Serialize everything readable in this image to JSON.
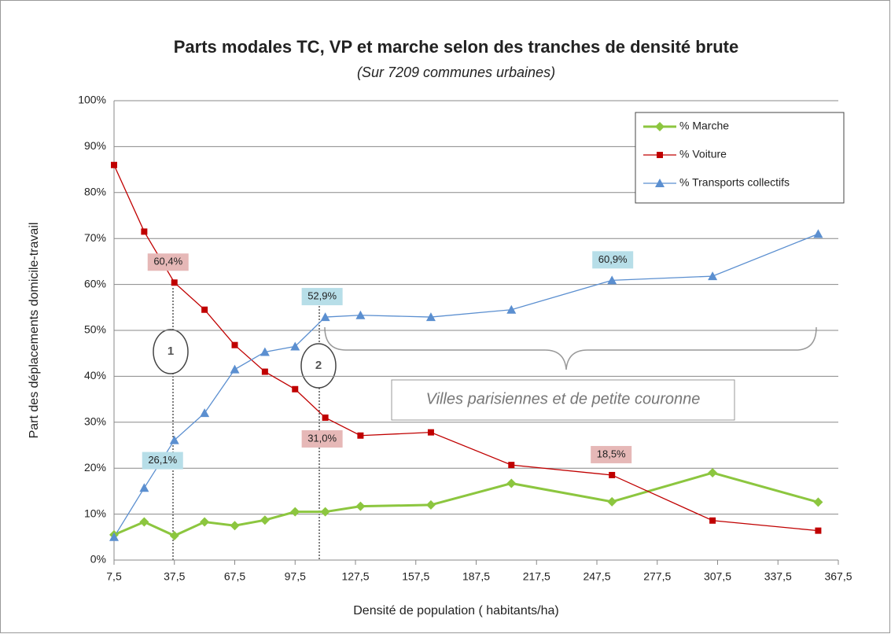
{
  "chart_data": {
    "type": "line",
    "title": "Parts modales TC, VP et marche selon des tranches de densité brute",
    "subtitle": "(Sur 7209 communes urbaines)",
    "x_label": "Densité de population ( habitants/ha)",
    "y_label": "Part des déplacements domicile-travail",
    "x": [
      7.5,
      22.5,
      37.5,
      52.5,
      67.5,
      82.5,
      97.5,
      112.5,
      130,
      165,
      205,
      255,
      305,
      357.5
    ],
    "series": [
      {
        "name": "% Marche",
        "color": "#8cc63f",
        "values": [
          5.5,
          8.3,
          5.3,
          8.3,
          7.5,
          8.7,
          10.5,
          10.5,
          11.7,
          12,
          16.7,
          12.7,
          19,
          12.6
        ]
      },
      {
        "name": "% Voiture",
        "color": "#c00000",
        "values": [
          86,
          71.5,
          60.4,
          54.5,
          46.8,
          41,
          37.2,
          31.0,
          27.1,
          27.8,
          20.7,
          18.5,
          8.6,
          6.4
        ],
        "value_labels": [
          null,
          null,
          "60,4%",
          null,
          null,
          null,
          null,
          "31,0%",
          null,
          null,
          null,
          "18,5%",
          null,
          null
        ]
      },
      {
        "name": "% Transports collectifs",
        "color": "#5b8fd0",
        "values": [
          5,
          15.7,
          26.1,
          32,
          41.5,
          45.3,
          46.5,
          52.9,
          53.3,
          52.9,
          54.5,
          60.9,
          61.8,
          71
        ],
        "value_labels": [
          null,
          null,
          "26,1%",
          null,
          null,
          null,
          null,
          "52,9%",
          null,
          null,
          null,
          "60,9%",
          null,
          null
        ]
      }
    ],
    "annotations": [
      "1",
      "2",
      "Villes parisiennes et de petite couronne"
    ],
    "xlim": [
      7.5,
      367.5
    ],
    "xticks": [
      {
        "value": 7.5,
        "label": "7,5"
      },
      {
        "value": 37.5,
        "label": "37,5"
      },
      {
        "value": 67.5,
        "label": "67,5"
      },
      {
        "value": 97.5,
        "label": "97,5"
      },
      {
        "value": 127.5,
        "label": "127,5"
      },
      {
        "value": 157.5,
        "label": "157,5"
      },
      {
        "value": 187.5,
        "label": "187,5"
      },
      {
        "value": 217.5,
        "label": "217,5"
      },
      {
        "value": 247.5,
        "label": "247,5"
      },
      {
        "value": 277.5,
        "label": "277,5"
      },
      {
        "value": 307.5,
        "label": "307,5"
      },
      {
        "value": 337.5,
        "label": "337,5"
      },
      {
        "value": 367.5,
        "label": "367,5"
      }
    ],
    "ylim": [
      0,
      100
    ],
    "yticks": [
      {
        "value": 0,
        "label": "0%"
      },
      {
        "value": 10,
        "label": "10%"
      },
      {
        "value": 20,
        "label": "20%"
      },
      {
        "value": 30,
        "label": "30%"
      },
      {
        "value": 40,
        "label": "40%"
      },
      {
        "value": 50,
        "label": "50%"
      },
      {
        "value": 60,
        "label": "60%"
      },
      {
        "value": 70,
        "label": "70%"
      },
      {
        "value": 80,
        "label": "80%"
      },
      {
        "value": 90,
        "label": "90%"
      },
      {
        "value": 100,
        "label": "100%"
      }
    ],
    "grid": true,
    "legend": "upper right"
  }
}
